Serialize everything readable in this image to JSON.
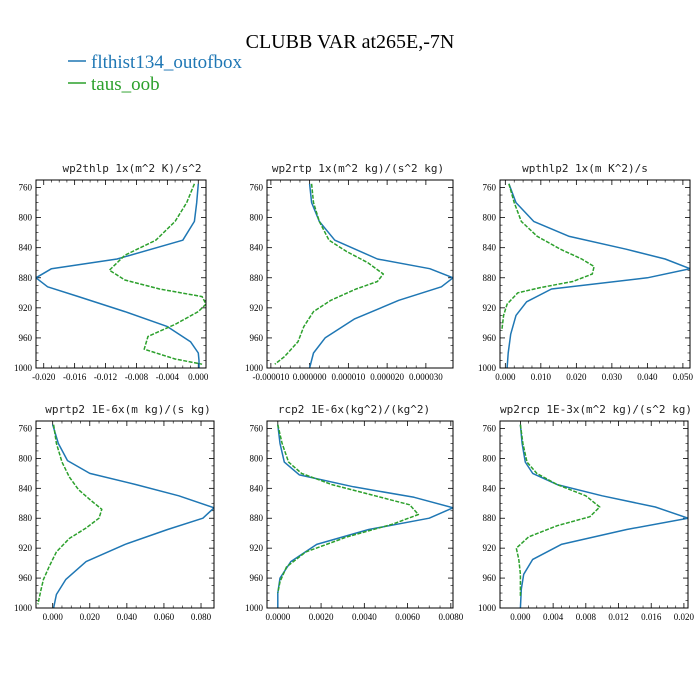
{
  "figure": {
    "title": "CLUBB VAR at265E,-7N",
    "legend": [
      {
        "label": "flthist134_outofbox",
        "color": "#1f77b4",
        "dash": "solid"
      },
      {
        "label": "taus_oob",
        "color": "#2ca02c",
        "dash": "dashed"
      }
    ]
  },
  "chart_data": [
    {
      "type": "line",
      "title": "wp2thlp  1x(m^2 K)/s^2",
      "xlim": [
        -0.021,
        0.001
      ],
      "ylim": [
        1000,
        750
      ],
      "xticks": [
        -0.02,
        -0.016,
        -0.012,
        -0.008,
        -0.004,
        0.0
      ],
      "xtick_labels": [
        "-0.020",
        "-0.016",
        "-0.012",
        "-0.008",
        "-0.004",
        "0.000"
      ],
      "yticks": [
        760,
        800,
        840,
        880,
        920,
        960,
        1000
      ],
      "series": [
        {
          "name": "flthist134_outofbox",
          "x": [
            0.0,
            -0.0002,
            -0.0005,
            -0.002,
            -0.0105,
            -0.019,
            -0.021,
            -0.0195,
            -0.0155,
            -0.0095,
            -0.004,
            -0.001,
            0.0,
            0.0001,
            0.0001
          ],
          "y": [
            755,
            780,
            805,
            830,
            855,
            868,
            880,
            892,
            905,
            925,
            945,
            965,
            980,
            990,
            1000
          ]
        },
        {
          "name": "taus_oob",
          "x": [
            -0.0005,
            -0.0015,
            -0.003,
            -0.0055,
            -0.0095,
            -0.0115,
            -0.0095,
            -0.005,
            0.0005,
            0.001,
            0.0,
            -0.003,
            -0.0065,
            -0.007,
            -0.003,
            0.0005
          ],
          "y": [
            755,
            780,
            805,
            830,
            850,
            870,
            883,
            895,
            905,
            915,
            925,
            942,
            958,
            975,
            988,
            995
          ]
        }
      ]
    },
    {
      "type": "line",
      "title": "wp2rtp  1x(m^2 kg)/(s^2 kg)",
      "xlim": [
        -1.1e-05,
        3.7e-05
      ],
      "ylim": [
        1000,
        750
      ],
      "xticks": [
        -1e-05,
        0.0,
        1e-05,
        2e-05,
        3e-05
      ],
      "xtick_labels": [
        "-0.000010",
        "0.000000",
        "0.000010",
        "0.000020",
        "0.000030"
      ],
      "yticks": [
        760,
        800,
        840,
        880,
        920,
        960,
        1000
      ],
      "series": [
        {
          "name": "flthist134_outofbox",
          "x": [
            0.0,
            5e-07,
            2.5e-06,
            6.5e-06,
            1.75e-05,
            3.1e-05,
            3.7e-05,
            3.4e-05,
            2.3e-05,
            1.15e-05,
            4e-06,
            1e-06,
            0.0
          ],
          "y": [
            755,
            780,
            805,
            830,
            855,
            868,
            880,
            892,
            910,
            935,
            960,
            980,
            1000
          ]
        },
        {
          "name": "taus_oob",
          "x": [
            5e-07,
            1e-06,
            2.5e-06,
            5e-06,
            9.5e-06,
            1.5e-05,
            1.9e-05,
            1.75e-05,
            1.2e-05,
            5.5e-06,
            1e-06,
            -1.5e-06,
            -3e-06,
            -6.5e-06,
            -9e-06
          ],
          "y": [
            755,
            780,
            805,
            830,
            845,
            860,
            875,
            885,
            895,
            910,
            925,
            945,
            965,
            985,
            995
          ]
        }
      ]
    },
    {
      "type": "line",
      "title": "wpthlp2  1x(m K^2)/s",
      "xlim": [
        -0.0015,
        0.052
      ],
      "ylim": [
        1000,
        750
      ],
      "xticks": [
        0.0,
        0.01,
        0.02,
        0.03,
        0.04,
        0.05
      ],
      "xtick_labels": [
        "0.000",
        "0.010",
        "0.020",
        "0.030",
        "0.040",
        "0.050"
      ],
      "yticks": [
        760,
        800,
        840,
        880,
        920,
        960,
        1000
      ],
      "series": [
        {
          "name": "flthist134_outofbox",
          "x": [
            0.001,
            0.003,
            0.008,
            0.018,
            0.034,
            0.045,
            0.052,
            0.04,
            0.013,
            0.006,
            0.003,
            0.0015,
            0.0008,
            0.0005
          ],
          "y": [
            755,
            780,
            805,
            825,
            842,
            855,
            868,
            880,
            895,
            912,
            930,
            955,
            980,
            1000
          ]
        },
        {
          "name": "taus_oob",
          "x": [
            0.001,
            0.0025,
            0.0045,
            0.009,
            0.0155,
            0.0215,
            0.025,
            0.0245,
            0.019,
            0.01,
            0.0035,
            0.0005,
            -0.0005,
            -0.001
          ],
          "y": [
            755,
            780,
            805,
            825,
            842,
            855,
            865,
            875,
            885,
            893,
            900,
            915,
            930,
            950
          ]
        }
      ]
    },
    {
      "type": "line",
      "title": "wprtp2  1E-6x(m kg)/(s kg)",
      "xlim": [
        -0.009,
        0.087
      ],
      "ylim": [
        1000,
        750
      ],
      "xticks": [
        0.0,
        0.02,
        0.04,
        0.06,
        0.08
      ],
      "xtick_labels": [
        "0.000",
        "0.020",
        "0.040",
        "0.060",
        "0.080"
      ],
      "yticks": [
        760,
        800,
        840,
        880,
        920,
        960,
        1000
      ],
      "series": [
        {
          "name": "flthist134_outofbox",
          "x": [
            0.0,
            0.003,
            0.008,
            0.02,
            0.045,
            0.068,
            0.087,
            0.081,
            0.062,
            0.039,
            0.018,
            0.007,
            0.002,
            0.0005
          ],
          "y": [
            755,
            780,
            803,
            820,
            835,
            850,
            866,
            880,
            895,
            915,
            938,
            962,
            982,
            1000
          ]
        },
        {
          "name": "taus_oob",
          "x": [
            0.0005,
            0.002,
            0.005,
            0.009,
            0.014,
            0.021,
            0.0265,
            0.025,
            0.018,
            0.009,
            0.002,
            -0.002,
            -0.005,
            -0.0065,
            -0.008
          ],
          "y": [
            755,
            780,
            805,
            825,
            842,
            857,
            868,
            880,
            893,
            907,
            925,
            945,
            962,
            978,
            995
          ]
        }
      ]
    },
    {
      "type": "line",
      "title": "rcp2  1E-6x(kg^2)/(kg^2)",
      "xlim": [
        -0.0005,
        0.0081
      ],
      "ylim": [
        1000,
        750
      ],
      "xticks": [
        0.0,
        0.002,
        0.004,
        0.006,
        0.008
      ],
      "xtick_labels": [
        "0.0000",
        "0.0020",
        "0.0040",
        "0.0060",
        "0.0080"
      ],
      "yticks": [
        760,
        800,
        840,
        880,
        920,
        960,
        1000
      ],
      "series": [
        {
          "name": "flthist134_outofbox",
          "x": [
            0.0,
            0.0001,
            0.0003,
            0.001,
            0.0035,
            0.0063,
            0.0081,
            0.007,
            0.0042,
            0.0018,
            0.0006,
            0.0001,
            0.0,
            0.0
          ],
          "y": [
            755,
            780,
            805,
            822,
            838,
            852,
            866,
            880,
            895,
            915,
            938,
            960,
            980,
            1000
          ]
        },
        {
          "name": "taus_oob",
          "x": [
            0.0,
            0.0002,
            0.0005,
            0.0011,
            0.0025,
            0.0045,
            0.0061,
            0.0065,
            0.0053,
            0.0032,
            0.0013,
            0.0004,
            0.0001,
            0.0
          ],
          "y": [
            755,
            780,
            805,
            820,
            835,
            850,
            862,
            875,
            888,
            905,
            925,
            945,
            965,
            980
          ]
        }
      ]
    },
    {
      "type": "line",
      "title": "wp2rcp  1E-3x(m^2 kg)/(s^2 kg)",
      "xlim": [
        -0.0025,
        0.0205
      ],
      "ylim": [
        1000,
        750
      ],
      "xticks": [
        0.0,
        0.004,
        0.008,
        0.012,
        0.016,
        0.02
      ],
      "xtick_labels": [
        "0.000",
        "0.004",
        "0.008",
        "0.012",
        "0.016",
        "0.020"
      ],
      "yticks": [
        760,
        800,
        840,
        880,
        920,
        960,
        1000
      ],
      "series": [
        {
          "name": "flthist134_outofbox",
          "x": [
            0.0,
            0.0002,
            0.0006,
            0.0015,
            0.0045,
            0.01,
            0.0165,
            0.0205,
            0.013,
            0.005,
            0.0015,
            0.0004,
            0.0001,
            0.0
          ],
          "y": [
            755,
            780,
            805,
            820,
            835,
            850,
            865,
            880,
            895,
            915,
            935,
            955,
            975,
            1000
          ]
        },
        {
          "name": "taus_oob",
          "x": [
            0.0,
            0.0003,
            0.0008,
            0.002,
            0.0045,
            0.008,
            0.0097,
            0.0085,
            0.0045,
            0.001,
            -0.0005,
            -0.0002,
            0.0,
            0.0
          ],
          "y": [
            755,
            780,
            805,
            820,
            835,
            850,
            865,
            878,
            890,
            905,
            920,
            935,
            955,
            985
          ]
        }
      ]
    }
  ]
}
